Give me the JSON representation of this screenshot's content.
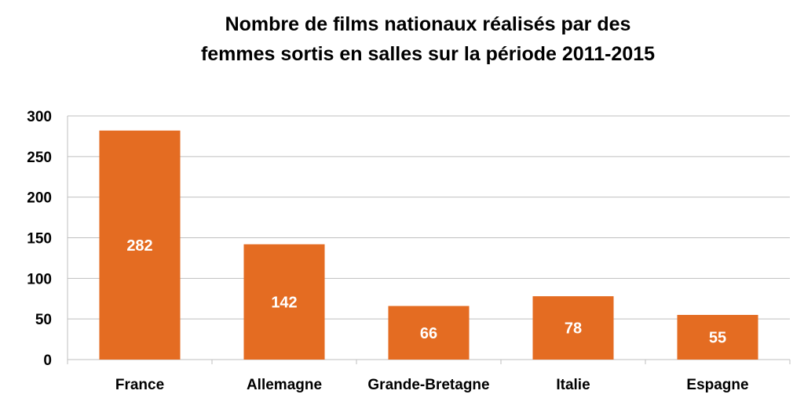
{
  "chart_data": {
    "type": "bar",
    "title_line1": "Nombre de films nationaux réalisés par des",
    "title_line2": "femmes sortis en salles sur la période 2011-2015",
    "categories": [
      "France",
      "Allemagne",
      "Grande-Bretagne",
      "Italie",
      "Espagne"
    ],
    "values": [
      282,
      142,
      66,
      78,
      55
    ],
    "ylim": [
      0,
      300
    ],
    "yticks": [
      0,
      50,
      100,
      150,
      200,
      250,
      300
    ],
    "grid": true,
    "legend": "none",
    "bar_color": "#E46C22",
    "grid_color": "#BFBFBF"
  }
}
